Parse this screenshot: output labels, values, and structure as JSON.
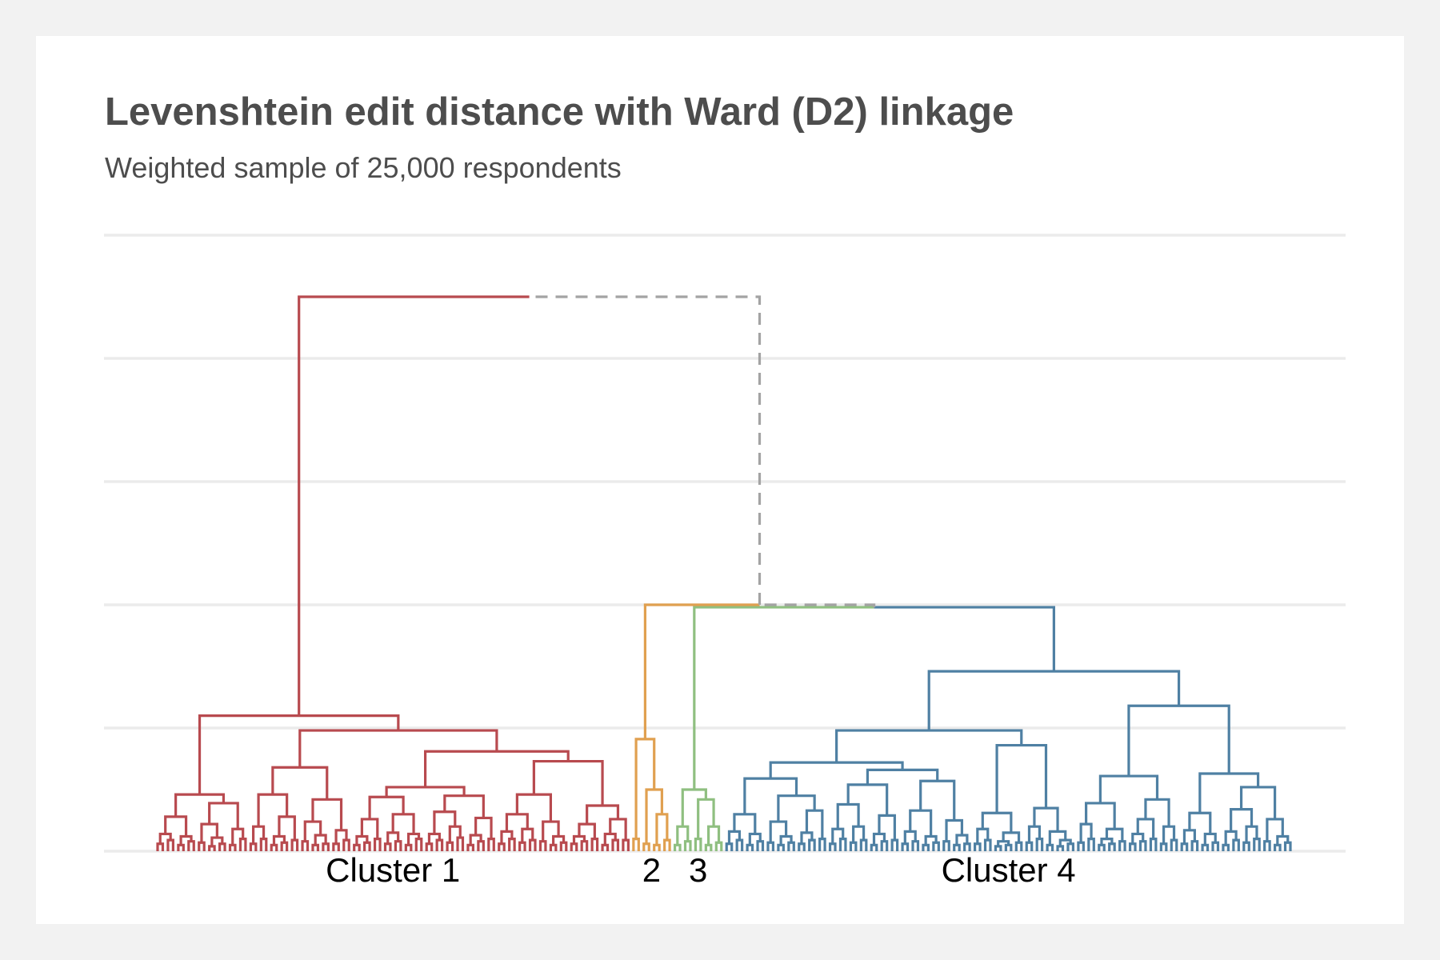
{
  "chart_data": {
    "type": "dendrogram",
    "title": "Levenshtein edit distance with Ward (D2) linkage",
    "subtitle": "Weighted sample of 25,000 respondents",
    "ylim": [
      0,
      5
    ],
    "yticks": [
      0,
      1,
      2,
      3,
      4,
      5
    ],
    "grid": true,
    "link_color": "#a3a3a3",
    "clusters": [
      {
        "name": "Cluster 1",
        "color": "#b84a4f",
        "tree": [
          1.1,
          [
            0.46,
            [
              0.28,
              [
                0.14,
                0.06,
                0.09
              ],
              [
                0.12,
                0.05,
                0.08
              ]
            ],
            [
              0.39,
              [
                0.22,
                0.07,
                [
                  0.11,
                  0.04,
                  0.06
                ]
              ],
              [
                0.18,
                0.05,
                0.1
              ]
            ]
          ],
          [
            0.98,
            [
              0.68,
              [
                0.46,
                [
                  0.2,
                  0.06,
                  0.1
                ],
                [
                  0.28,
                  [
                    0.12,
                    0.05,
                    0.07
                  ],
                  0.09
                ]
              ],
              [
                0.42,
                [
                  0.24,
                  0.08,
                  [
                    0.13,
                    0.05,
                    0.06
                  ]
                ],
                [
                  0.17,
                  0.06,
                  0.09
                ]
              ]
            ],
            [
              0.81,
              [
                0.52,
                [
                  0.44,
                  [
                    0.26,
                    [
                      0.12,
                      0.05,
                      0.07
                    ],
                    0.1
                  ],
                  [
                    0.3,
                    [
                      0.15,
                      0.06,
                      0.08
                    ],
                    [
                      0.14,
                      0.05,
                      0.1
                    ]
                  ]
                ],
                [
                  0.45,
                  [
                    0.32,
                    [
                      0.14,
                      0.06,
                      0.09
                    ],
                    [
                      0.2,
                      0.07,
                      0.11
                    ]
                  ],
                  [
                    0.27,
                    [
                      0.13,
                      0.05,
                      0.08
                    ],
                    0.1
                  ]
                ]
              ],
              [
                0.73,
                [
                  0.46,
                  [
                    0.3,
                    [
                      0.16,
                      0.06,
                      0.1
                    ],
                    [
                      0.18,
                      0.07,
                      0.09
                    ]
                  ],
                  [
                    0.24,
                    0.08,
                    [
                      0.12,
                      0.05,
                      0.07
                    ]
                  ]
                ],
                [
                  0.37,
                  [
                    0.22,
                    [
                      0.12,
                      0.06,
                      0.08
                    ],
                    0.1
                  ],
                  [
                    0.26,
                    [
                      0.14,
                      0.05,
                      0.09
                    ],
                    0.09
                  ]
                ]
              ]
            ]
          ]
        ]
      },
      {
        "name": "2",
        "color": "#e0a050",
        "tree": [
          0.91,
          0.1,
          [
            0.5,
            0.06,
            [
              0.3,
              0.05,
              0.09
            ]
          ]
        ]
      },
      {
        "name": "3",
        "color": "#8fbf80",
        "tree": [
          0.5,
          [
            0.2,
            0.05,
            0.08
          ],
          [
            0.42,
            0.1,
            [
              0.2,
              0.05,
              0.07
            ]
          ]
        ]
      },
      {
        "name": "Cluster 4",
        "color": "#4f80a3",
        "tree": [
          1.46,
          [
            0.98,
            [
              0.72,
              [
                0.59,
                [
                  0.3,
                  [
                    0.16,
                    0.06,
                    0.09
                  ],
                  [
                    0.14,
                    0.05,
                    0.08
                  ]
                ],
                [
                  0.45,
                  [
                    0.24,
                    0.07,
                    [
                      0.12,
                      0.05,
                      0.07
                    ]
                  ],
                  [
                    0.33,
                    [
                      0.15,
                      0.06,
                      0.09
                    ],
                    0.1
                  ]
                ]
              ],
              [
                0.66,
                [
                  0.54,
                  [
                    0.38,
                    [
                      0.18,
                      0.06,
                      0.1
                    ],
                    [
                      0.2,
                      0.07,
                      0.09
                    ]
                  ],
                  [
                    0.29,
                    [
                      0.14,
                      0.05,
                      0.08
                    ],
                    0.09
                  ]
                ],
                [
                  0.57,
                  [
                    0.33,
                    [
                      0.16,
                      0.06,
                      0.08
                    ],
                    [
                      0.12,
                      0.05,
                      0.07
                    ]
                  ],
                  [
                    0.25,
                    0.08,
                    [
                      0.13,
                      0.05,
                      0.06
                    ]
                  ]
                ]
              ]
            ],
            [
              0.86,
              [
                0.31,
                [
                  0.18,
                  0.06,
                  0.09
                ],
                [
                  0.15,
                  [
                    0.08,
                    0.04,
                    0.05
                  ],
                  0.07
                ]
              ],
              [
                0.35,
                [
                  0.2,
                  0.07,
                  0.1
                ],
                [
                  0.16,
                  0.05,
                  [
                    0.09,
                    0.04,
                    0.06
                  ]
                ]
              ]
            ]
          ],
          [
            1.18,
            [
              0.61,
              [
                0.39,
                [
                  0.22,
                  0.07,
                  0.1
                ],
                [
                  0.18,
                  [
                    0.1,
                    0.05,
                    0.06
                  ],
                  0.08
                ]
              ],
              [
                0.42,
                [
                  0.26,
                  [
                    0.14,
                    0.06,
                    0.08
                  ],
                  0.1
                ],
                [
                  0.2,
                  0.06,
                  0.09
                ]
              ]
            ],
            [
              0.63,
              [
                0.31,
                [
                  0.17,
                  0.06,
                  0.08
                ],
                [
                  0.14,
                  0.05,
                  0.07
                ]
              ],
              [
                0.52,
                [
                  0.34,
                  [
                    0.16,
                    0.05,
                    0.09
                  ],
                  [
                    0.2,
                    0.07,
                    0.1
                  ]
                ],
                [
                  0.26,
                  0.08,
                  [
                    0.12,
                    0.05,
                    0.07
                  ]
                ]
              ]
            ]
          ]
        ]
      }
    ],
    "upper_tree": {
      "height": 4.5,
      "children": [
        {
          "cluster": 0
        },
        {
          "height": 2.0,
          "children": [
            {
              "cluster": 1
            },
            {
              "height": 1.98,
              "children": [
                {
                  "cluster": 2
                },
                {
                  "cluster": 3
                }
              ]
            }
          ]
        }
      ]
    }
  }
}
